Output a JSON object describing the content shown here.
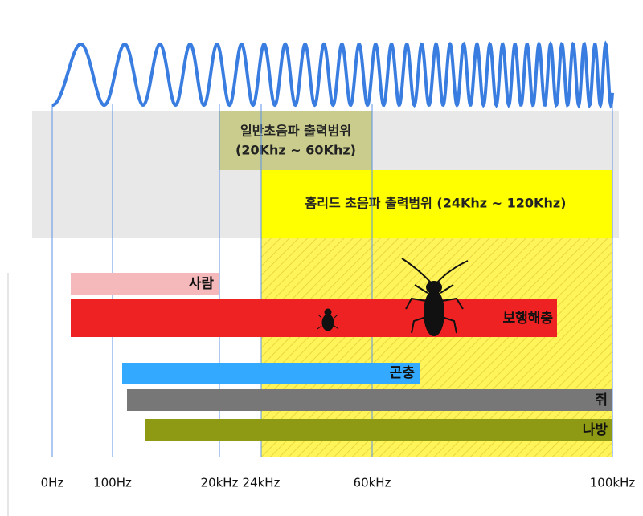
{
  "zones": {
    "general": {
      "title": "일반초음파 출력범위",
      "range": "(20Khz ~ 60Khz)"
    },
    "homeread": {
      "title": "홈리드 초음파 출력범위 (24Khz ~ 120Khz)"
    }
  },
  "bars": [
    {
      "label": "사람"
    },
    {
      "label": "보행해충"
    },
    {
      "label": "곤충"
    },
    {
      "label": "쥐"
    },
    {
      "label": "나방"
    }
  ],
  "axis": [
    "0Hz",
    "100Hz",
    "20kHz",
    "24kHz",
    "60kHz",
    "100kHz"
  ]
}
